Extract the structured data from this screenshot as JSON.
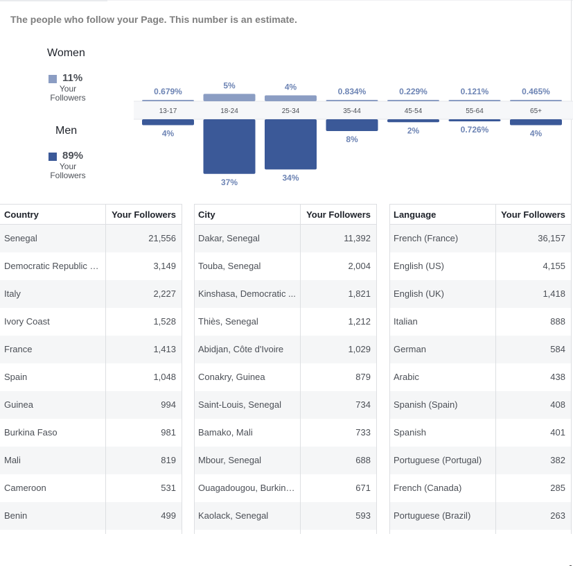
{
  "header": {
    "subtitle": "The people who follow your Page. This number is an estimate."
  },
  "legend": {
    "women": {
      "label": "Women",
      "percent": "11%",
      "sub_line1": "Your",
      "sub_line2": "Followers",
      "color": "#8b9dc3"
    },
    "men": {
      "label": "Men",
      "percent": "89%",
      "sub_line1": "Your",
      "sub_line2": "Followers",
      "color": "#3b5998"
    }
  },
  "chart_data": {
    "type": "bar",
    "categories": [
      "13-17",
      "18-24",
      "25-34",
      "35-44",
      "45-54",
      "55-64",
      "65+"
    ],
    "series": [
      {
        "name": "Women",
        "values": [
          0.679,
          5,
          4,
          0.834,
          0.229,
          0.121,
          0.465
        ],
        "labels": [
          "0.679%",
          "5%",
          "4%",
          "0.834%",
          "0.229%",
          "0.121%",
          "0.465%"
        ],
        "color": "#8b9dc3"
      },
      {
        "name": "Men",
        "values": [
          4,
          37,
          34,
          8,
          2,
          0.726,
          4
        ],
        "labels": [
          "4%",
          "37%",
          "34%",
          "8%",
          "2%",
          "0.726%",
          "4%"
        ],
        "color": "#3b5998"
      }
    ],
    "title": "",
    "xlabel": "",
    "ylabel": ""
  },
  "tables": {
    "country": {
      "header_name": "Country",
      "header_value": "Your Followers",
      "rows": [
        {
          "name": "Senegal",
          "value": "21,556"
        },
        {
          "name": "Democratic Republic of...",
          "value": "3,149"
        },
        {
          "name": "Italy",
          "value": "2,227"
        },
        {
          "name": "Ivory Coast",
          "value": "1,528"
        },
        {
          "name": "France",
          "value": "1,413"
        },
        {
          "name": "Spain",
          "value": "1,048"
        },
        {
          "name": "Guinea",
          "value": "994"
        },
        {
          "name": "Burkina Faso",
          "value": "981"
        },
        {
          "name": "Mali",
          "value": "819"
        },
        {
          "name": "Cameroon",
          "value": "531"
        },
        {
          "name": "Benin",
          "value": "499"
        }
      ]
    },
    "city": {
      "header_name": "City",
      "header_value": "Your Followers",
      "rows": [
        {
          "name": "Dakar, Senegal",
          "value": "11,392"
        },
        {
          "name": "Touba, Senegal",
          "value": "2,004"
        },
        {
          "name": "Kinshasa, Democratic ...",
          "value": "1,821"
        },
        {
          "name": "Thiès, Senegal",
          "value": "1,212"
        },
        {
          "name": "Abidjan, Côte d'Ivoire",
          "value": "1,029"
        },
        {
          "name": "Conakry, Guinea",
          "value": "879"
        },
        {
          "name": "Saint-Louis, Senegal",
          "value": "734"
        },
        {
          "name": "Bamako, Mali",
          "value": "733"
        },
        {
          "name": "Mbour, Senegal",
          "value": "688"
        },
        {
          "name": "Ouagadougou, Burkina...",
          "value": "671"
        },
        {
          "name": "Kaolack, Senegal",
          "value": "593"
        }
      ]
    },
    "language": {
      "header_name": "Language",
      "header_value": "Your Followers",
      "rows": [
        {
          "name": "French (France)",
          "value": "36,157"
        },
        {
          "name": "English (US)",
          "value": "4,155"
        },
        {
          "name": "English (UK)",
          "value": "1,418"
        },
        {
          "name": "Italian",
          "value": "888"
        },
        {
          "name": "German",
          "value": "584"
        },
        {
          "name": "Arabic",
          "value": "438"
        },
        {
          "name": "Spanish (Spain)",
          "value": "408"
        },
        {
          "name": "Spanish",
          "value": "401"
        },
        {
          "name": "Portuguese (Portugal)",
          "value": "382"
        },
        {
          "name": "French (Canada)",
          "value": "285"
        },
        {
          "name": "Portuguese (Brazil)",
          "value": "263"
        }
      ]
    }
  }
}
